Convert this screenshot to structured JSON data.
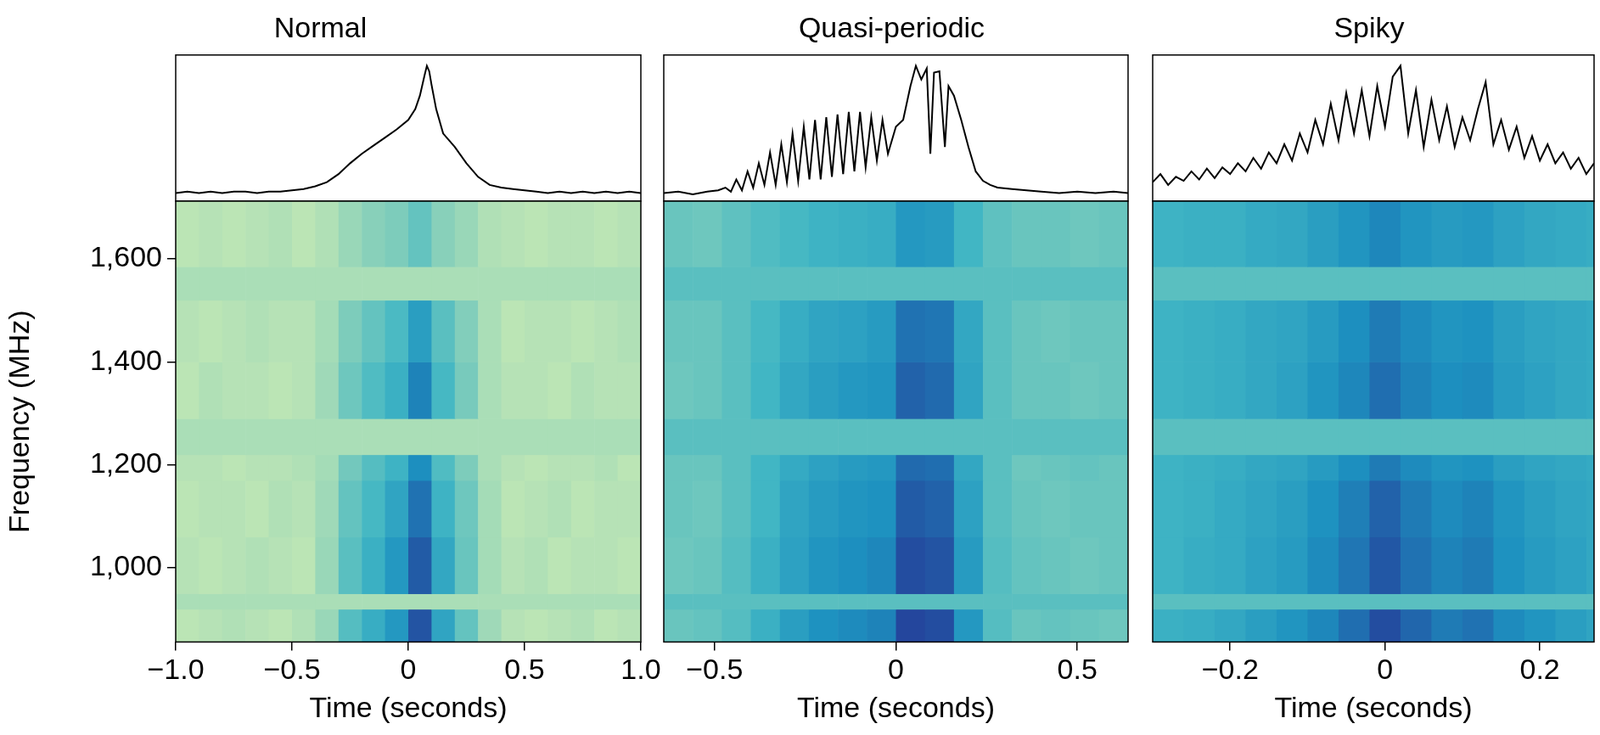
{
  "chart_data": [
    {
      "type": "line",
      "title": "Normal",
      "color": "#000000",
      "tick_labels": false,
      "xlim": [
        -1,
        1
      ],
      "ylim": [
        0,
        1.08
      ],
      "x": [
        -1,
        -0.95,
        -0.9,
        -0.85,
        -0.8,
        -0.75,
        -0.7,
        -0.65,
        -0.6,
        -0.55,
        -0.5,
        -0.45,
        -0.4,
        -0.35,
        -0.3,
        -0.25,
        -0.2,
        -0.15,
        -0.1,
        -0.05,
        0,
        0.03,
        0.05,
        0.07,
        0.08,
        0.09,
        0.1,
        0.12,
        0.15,
        0.2,
        0.25,
        0.3,
        0.35,
        0.4,
        0.45,
        0.5,
        0.55,
        0.6,
        0.65,
        0.7,
        0.75,
        0.8,
        0.85,
        0.9,
        0.95,
        1
      ],
      "values": [
        0.06,
        0.07,
        0.06,
        0.07,
        0.06,
        0.07,
        0.07,
        0.06,
        0.07,
        0.07,
        0.08,
        0.09,
        0.11,
        0.14,
        0.2,
        0.28,
        0.35,
        0.41,
        0.47,
        0.53,
        0.6,
        0.68,
        0.78,
        0.93,
        1.0,
        0.96,
        0.86,
        0.68,
        0.5,
        0.4,
        0.28,
        0.18,
        0.12,
        0.1,
        0.09,
        0.08,
        0.07,
        0.06,
        0.07,
        0.06,
        0.07,
        0.06,
        0.07,
        0.06,
        0.07,
        0.06
      ]
    },
    {
      "type": "heatmap",
      "xlabel": "Time (seconds)",
      "ylabel": "Frequency (MHz)",
      "grid": false,
      "xlim": [
        -1,
        1
      ],
      "xticks": [
        {
          "value": -1,
          "label": "−1.0"
        },
        {
          "value": -0.5,
          "label": "−0.5"
        },
        0,
        0.5,
        {
          "value": 1,
          "label": "1.0"
        }
      ],
      "ylim": [
        856,
        1712
      ],
      "yticks": [
        {
          "value": 1000,
          "label": "1,000"
        },
        {
          "value": 1200,
          "label": "1,200"
        },
        {
          "value": 1400,
          "label": "1,400"
        },
        {
          "value": 1600,
          "label": "1,600"
        }
      ],
      "zlim": [
        0,
        1
      ],
      "x_edges": [
        -1,
        -0.9,
        -0.8,
        -0.7,
        -0.6,
        -0.5,
        -0.4,
        -0.3,
        -0.2,
        -0.1,
        0,
        0.1,
        0.2,
        0.3,
        0.4,
        0.5,
        0.6,
        0.7,
        0.8,
        0.9,
        1
      ],
      "y_edges": [
        856,
        920,
        950,
        1060,
        1170,
        1220,
        1290,
        1400,
        1520,
        1585,
        1712
      ],
      "cells": [
        [
          0.27,
          0.28,
          0.29,
          0.28,
          0.27,
          0.29,
          0.33,
          0.46,
          0.53,
          0.6,
          0.78,
          0.56,
          0.43,
          0.32,
          0.28,
          0.27,
          0.28,
          0.29,
          0.27,
          0.28
        ],
        [
          0.3,
          0.3,
          0.3,
          0.3,
          0.3,
          0.3,
          0.3,
          0.3,
          0.3,
          0.3,
          0.3,
          0.3,
          0.3,
          0.3,
          0.3,
          0.3,
          0.3,
          0.3,
          0.3,
          0.3
        ],
        [
          0.28,
          0.27,
          0.28,
          0.29,
          0.28,
          0.27,
          0.33,
          0.45,
          0.52,
          0.6,
          0.76,
          0.55,
          0.42,
          0.31,
          0.28,
          0.29,
          0.27,
          0.28,
          0.28,
          0.27
        ],
        [
          0.27,
          0.28,
          0.28,
          0.27,
          0.29,
          0.28,
          0.32,
          0.43,
          0.49,
          0.56,
          0.7,
          0.51,
          0.41,
          0.31,
          0.27,
          0.28,
          0.29,
          0.27,
          0.28,
          0.28
        ],
        [
          0.28,
          0.28,
          0.27,
          0.28,
          0.28,
          0.29,
          0.31,
          0.4,
          0.46,
          0.51,
          0.63,
          0.47,
          0.38,
          0.3,
          0.28,
          0.27,
          0.28,
          0.28,
          0.29,
          0.27
        ],
        [
          0.3,
          0.3,
          0.3,
          0.3,
          0.3,
          0.3,
          0.3,
          0.3,
          0.3,
          0.3,
          0.3,
          0.3,
          0.3,
          0.3,
          0.3,
          0.3,
          0.3,
          0.3,
          0.3,
          0.3
        ],
        [
          0.27,
          0.29,
          0.28,
          0.28,
          0.27,
          0.28,
          0.32,
          0.41,
          0.47,
          0.52,
          0.66,
          0.49,
          0.39,
          0.3,
          0.28,
          0.28,
          0.27,
          0.29,
          0.28,
          0.28
        ],
        [
          0.28,
          0.27,
          0.28,
          0.29,
          0.28,
          0.28,
          0.31,
          0.38,
          0.43,
          0.48,
          0.58,
          0.45,
          0.37,
          0.3,
          0.27,
          0.28,
          0.28,
          0.27,
          0.28,
          0.29
        ],
        [
          0.3,
          0.3,
          0.3,
          0.3,
          0.3,
          0.3,
          0.3,
          0.3,
          0.3,
          0.3,
          0.3,
          0.3,
          0.3,
          0.3,
          0.3,
          0.3,
          0.3,
          0.3,
          0.3,
          0.3
        ],
        [
          0.27,
          0.28,
          0.27,
          0.28,
          0.29,
          0.27,
          0.29,
          0.33,
          0.36,
          0.38,
          0.43,
          0.36,
          0.33,
          0.29,
          0.28,
          0.27,
          0.28,
          0.28,
          0.27,
          0.28
        ]
      ]
    },
    {
      "type": "line",
      "title": "Quasi-periodic",
      "color": "#000000",
      "tick_labels": false,
      "xlim": [
        -0.64,
        0.64
      ],
      "ylim": [
        0,
        1.08
      ],
      "x": [
        -0.64,
        -0.6,
        -0.56,
        -0.52,
        -0.49,
        -0.47,
        -0.455,
        -0.44,
        -0.4245,
        -0.409,
        -0.3935,
        -0.378,
        -0.3625,
        -0.347,
        -0.3315,
        -0.316,
        -0.3005,
        -0.285,
        -0.2695,
        -0.254,
        -0.2385,
        -0.223,
        -0.2075,
        -0.192,
        -0.1765,
        -0.161,
        -0.1455,
        -0.13,
        -0.1145,
        -0.099,
        -0.0835,
        -0.068,
        -0.0525,
        -0.037,
        -0.022,
        0,
        0.02,
        0.04,
        0.055,
        0.07,
        0.085,
        0.095,
        0.105,
        0.12,
        0.135,
        0.145,
        0.16,
        0.18,
        0.2,
        0.22,
        0.24,
        0.26,
        0.28,
        0.32,
        0.36,
        0.4,
        0.45,
        0.5,
        0.55,
        0.6,
        0.64
      ],
      "values": [
        0.06,
        0.07,
        0.05,
        0.07,
        0.08,
        0.1,
        0.07,
        0.16,
        0.08,
        0.22,
        0.1,
        0.28,
        0.12,
        0.36,
        0.12,
        0.42,
        0.14,
        0.5,
        0.15,
        0.55,
        0.16,
        0.6,
        0.16,
        0.62,
        0.18,
        0.64,
        0.2,
        0.66,
        0.22,
        0.66,
        0.25,
        0.62,
        0.3,
        0.6,
        0.35,
        0.55,
        0.6,
        0.85,
        1.0,
        0.9,
        0.98,
        0.35,
        0.95,
        0.96,
        0.4,
        0.85,
        0.78,
        0.6,
        0.4,
        0.22,
        0.15,
        0.12,
        0.1,
        0.09,
        0.08,
        0.07,
        0.06,
        0.07,
        0.06,
        0.07,
        0.06
      ]
    },
    {
      "type": "heatmap",
      "xlabel": "Time (seconds)",
      "grid": false,
      "tick_labels": "x",
      "xlim": [
        -0.64,
        0.64
      ],
      "xticks": [
        {
          "value": -0.5,
          "label": "−0.5"
        },
        0,
        0.5
      ],
      "ylim": [
        856,
        1712
      ],
      "zlim": [
        0,
        1
      ],
      "x_edges": [
        -0.64,
        -0.56,
        -0.48,
        -0.4,
        -0.32,
        -0.24,
        -0.16,
        -0.08,
        0,
        0.08,
        0.16,
        0.24,
        0.32,
        0.4,
        0.48,
        0.56,
        0.64
      ],
      "y_edges": [
        856,
        920,
        950,
        1060,
        1170,
        1220,
        1290,
        1400,
        1520,
        1585,
        1712
      ],
      "cells": [
        [
          0.42,
          0.43,
          0.46,
          0.52,
          0.58,
          0.62,
          0.64,
          0.66,
          0.82,
          0.8,
          0.6,
          0.46,
          0.42,
          0.43,
          0.42,
          0.41
        ],
        [
          0.45,
          0.45,
          0.45,
          0.45,
          0.45,
          0.45,
          0.45,
          0.45,
          0.45,
          0.45,
          0.45,
          0.45,
          0.45,
          0.45,
          0.45,
          0.45
        ],
        [
          0.41,
          0.42,
          0.46,
          0.52,
          0.57,
          0.61,
          0.63,
          0.65,
          0.8,
          0.78,
          0.59,
          0.46,
          0.43,
          0.42,
          0.41,
          0.42
        ],
        [
          0.42,
          0.41,
          0.45,
          0.5,
          0.56,
          0.59,
          0.61,
          0.62,
          0.76,
          0.74,
          0.57,
          0.45,
          0.42,
          0.41,
          0.42,
          0.42
        ],
        [
          0.42,
          0.42,
          0.45,
          0.5,
          0.54,
          0.57,
          0.59,
          0.6,
          0.72,
          0.71,
          0.55,
          0.45,
          0.41,
          0.42,
          0.43,
          0.42
        ],
        [
          0.45,
          0.45,
          0.45,
          0.45,
          0.45,
          0.45,
          0.45,
          0.45,
          0.45,
          0.45,
          0.45,
          0.45,
          0.45,
          0.45,
          0.45,
          0.45
        ],
        [
          0.41,
          0.42,
          0.45,
          0.5,
          0.55,
          0.58,
          0.6,
          0.61,
          0.74,
          0.72,
          0.56,
          0.45,
          0.42,
          0.42,
          0.41,
          0.42
        ],
        [
          0.42,
          0.42,
          0.45,
          0.49,
          0.53,
          0.56,
          0.57,
          0.59,
          0.7,
          0.69,
          0.55,
          0.45,
          0.42,
          0.41,
          0.42,
          0.42
        ],
        [
          0.45,
          0.45,
          0.45,
          0.45,
          0.45,
          0.45,
          0.45,
          0.45,
          0.45,
          0.45,
          0.45,
          0.45,
          0.45,
          0.45,
          0.45,
          0.45
        ],
        [
          0.42,
          0.41,
          0.44,
          0.47,
          0.49,
          0.51,
          0.52,
          0.53,
          0.6,
          0.59,
          0.5,
          0.44,
          0.42,
          0.42,
          0.41,
          0.42
        ]
      ]
    },
    {
      "type": "line",
      "title": "Spiky",
      "color": "#000000",
      "tick_labels": false,
      "xlim": [
        -0.3,
        0.27
      ],
      "ylim": [
        0,
        1.08
      ],
      "x": [
        -0.3,
        -0.29,
        -0.28,
        -0.27,
        -0.26,
        -0.25,
        -0.24,
        -0.23,
        -0.22,
        -0.21,
        -0.2,
        -0.19,
        -0.18,
        -0.17,
        -0.16,
        -0.15,
        -0.14,
        -0.13,
        -0.12,
        -0.11,
        -0.1,
        -0.09,
        -0.08,
        -0.07,
        -0.06,
        -0.05,
        -0.04,
        -0.03,
        -0.02,
        -0.01,
        0,
        0.01,
        0.02,
        0.03,
        0.04,
        0.05,
        0.06,
        0.07,
        0.08,
        0.09,
        0.1,
        0.11,
        0.12,
        0.13,
        0.14,
        0.15,
        0.16,
        0.17,
        0.18,
        0.19,
        0.2,
        0.21,
        0.22,
        0.23,
        0.24,
        0.25,
        0.26,
        0.27
      ],
      "values": [
        0.14,
        0.2,
        0.12,
        0.18,
        0.15,
        0.22,
        0.16,
        0.24,
        0.17,
        0.25,
        0.2,
        0.28,
        0.22,
        0.32,
        0.24,
        0.36,
        0.28,
        0.42,
        0.3,
        0.5,
        0.36,
        0.6,
        0.42,
        0.72,
        0.45,
        0.8,
        0.5,
        0.82,
        0.48,
        0.85,
        0.55,
        0.92,
        1.0,
        0.5,
        0.82,
        0.4,
        0.75,
        0.45,
        0.7,
        0.4,
        0.62,
        0.45,
        0.68,
        0.88,
        0.42,
        0.6,
        0.38,
        0.55,
        0.32,
        0.48,
        0.3,
        0.42,
        0.28,
        0.36,
        0.24,
        0.32,
        0.2,
        0.28
      ]
    },
    {
      "type": "heatmap",
      "xlabel": "Time (seconds)",
      "grid": false,
      "tick_labels": "x",
      "xlim": [
        -0.3,
        0.27
      ],
      "xticks": [
        {
          "value": -0.2,
          "label": "−0.2"
        },
        0,
        0.2
      ],
      "ylim": [
        856,
        1712
      ],
      "zlim": [
        0,
        1
      ],
      "x_edges": [
        -0.3,
        -0.26,
        -0.22,
        -0.18,
        -0.14,
        -0.1,
        -0.06,
        -0.02,
        0.02,
        0.06,
        0.1,
        0.14,
        0.18,
        0.22,
        0.26,
        0.27
      ],
      "y_edges": [
        856,
        920,
        950,
        1060,
        1170,
        1220,
        1290,
        1400,
        1520,
        1585,
        1712
      ],
      "cells": [
        [
          0.52,
          0.53,
          0.55,
          0.58,
          0.61,
          0.65,
          0.71,
          0.8,
          0.73,
          0.68,
          0.7,
          0.64,
          0.61,
          0.58,
          0.56
        ],
        [
          0.45,
          0.45,
          0.45,
          0.45,
          0.45,
          0.45,
          0.45,
          0.45,
          0.45,
          0.45,
          0.45,
          0.45,
          0.45,
          0.45,
          0.45
        ],
        [
          0.51,
          0.53,
          0.54,
          0.57,
          0.59,
          0.64,
          0.69,
          0.77,
          0.7,
          0.66,
          0.68,
          0.62,
          0.59,
          0.57,
          0.55
        ],
        [
          0.51,
          0.52,
          0.54,
          0.56,
          0.58,
          0.62,
          0.67,
          0.74,
          0.68,
          0.64,
          0.66,
          0.61,
          0.58,
          0.56,
          0.55
        ],
        [
          0.51,
          0.52,
          0.53,
          0.55,
          0.56,
          0.59,
          0.63,
          0.68,
          0.64,
          0.61,
          0.62,
          0.58,
          0.56,
          0.55,
          0.54
        ],
        [
          0.45,
          0.45,
          0.45,
          0.45,
          0.45,
          0.45,
          0.45,
          0.45,
          0.45,
          0.45,
          0.45,
          0.45,
          0.45,
          0.45,
          0.45
        ],
        [
          0.51,
          0.52,
          0.53,
          0.55,
          0.57,
          0.61,
          0.65,
          0.71,
          0.66,
          0.63,
          0.64,
          0.59,
          0.57,
          0.55,
          0.54
        ],
        [
          0.51,
          0.52,
          0.53,
          0.55,
          0.56,
          0.59,
          0.63,
          0.68,
          0.64,
          0.61,
          0.62,
          0.58,
          0.56,
          0.55,
          0.54
        ],
        [
          0.45,
          0.45,
          0.45,
          0.45,
          0.45,
          0.45,
          0.45,
          0.45,
          0.45,
          0.45,
          0.45,
          0.45,
          0.45,
          0.45,
          0.45
        ],
        [
          0.51,
          0.52,
          0.52,
          0.54,
          0.55,
          0.58,
          0.61,
          0.65,
          0.61,
          0.59,
          0.6,
          0.57,
          0.55,
          0.54,
          0.53
        ]
      ]
    }
  ]
}
